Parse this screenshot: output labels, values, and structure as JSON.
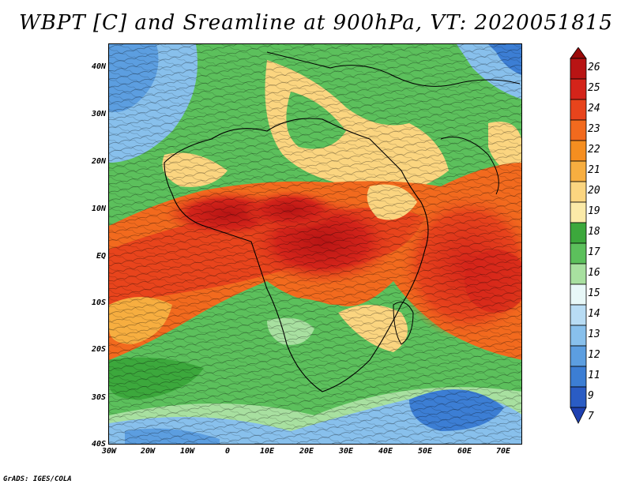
{
  "title": "WBPT [C] and Sreamline at 900hPa, VT: 2020051815",
  "footer": "GrADS: IGES/COLA",
  "axes": {
    "lat_labels": [
      "40N",
      "30N",
      "20N",
      "10N",
      "EQ",
      "10S",
      "20S",
      "30S",
      "40S"
    ],
    "lon_labels": [
      "30W",
      "20W",
      "10W",
      "0",
      "10E",
      "20E",
      "30E",
      "40E",
      "50E",
      "60E",
      "70E"
    ]
  },
  "colorbar": {
    "labels": [
      "26",
      "25",
      "24",
      "23",
      "22",
      "21",
      "20",
      "19",
      "18",
      "17",
      "16",
      "15",
      "14",
      "13",
      "12",
      "11",
      "9",
      "7"
    ],
    "colors": [
      "#9a0a0a",
      "#b81414",
      "#d4241a",
      "#e8441c",
      "#f26a1e",
      "#f58e20",
      "#f7ae40",
      "#fbd580",
      "#fbeaa8",
      "#3ca83c",
      "#5cc05c",
      "#a8e0a0",
      "#e8f8f8",
      "#b8dcf4",
      "#88c0ec",
      "#5c9ee0",
      "#3c7ed4",
      "#2a5cc4",
      "#1e40b0"
    ]
  }
}
